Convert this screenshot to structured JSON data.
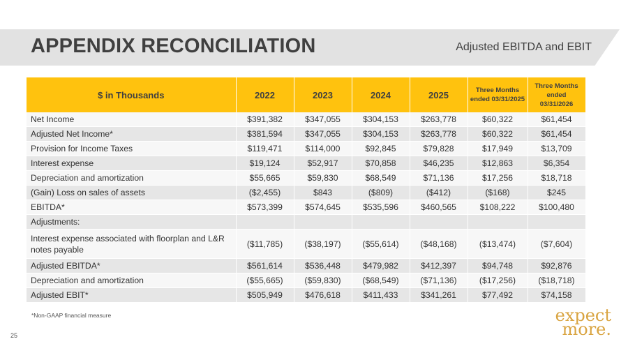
{
  "header": {
    "title": "APPENDIX RECONCILIATION",
    "subtitle": "Adjusted EBITDA and EBIT"
  },
  "table": {
    "columns": [
      "$ in Thousands",
      "2022",
      "2023",
      "2024",
      "2025",
      "Three Months ended 03/31/2025",
      "Three Months ended 03/31/2026"
    ],
    "rows": [
      {
        "label": "Net Income",
        "values": [
          "$391,382",
          "$347,055",
          "$304,153",
          "$263,778",
          "$60,322",
          "$61,454"
        ]
      },
      {
        "label": "Adjusted Net Income*",
        "values": [
          "$381,594",
          "$347,055",
          "$304,153",
          "$263,778",
          "$60,322",
          "$61,454"
        ]
      },
      {
        "label": "Provision for Income Taxes",
        "values": [
          "$119,471",
          "$114,000",
          "$92,845",
          "$79,828",
          "$17,949",
          "$13,709"
        ]
      },
      {
        "label": "Interest expense",
        "values": [
          "$19,124",
          "$52,917",
          "$70,858",
          "$46,235",
          "$12,863",
          "$6,354"
        ]
      },
      {
        "label": "Depreciation and amortization",
        "values": [
          "$55,665",
          "$59,830",
          "$68,549",
          "$71,136",
          "$17,256",
          "$18,718"
        ]
      },
      {
        "label": "(Gain) Loss on sales of assets",
        "values": [
          "($2,455)",
          "$843",
          "($809)",
          "($412)",
          "($168)",
          "$245"
        ]
      },
      {
        "label": "EBITDA*",
        "values": [
          "$573,399",
          "$574,645",
          "$535,596",
          "$460,565",
          "$108,222",
          "$100,480"
        ]
      },
      {
        "label": "Adjustments:",
        "values": [
          "",
          "",
          "",
          "",
          "",
          ""
        ]
      },
      {
        "label": "Interest expense associated with floorplan and L&R notes payable",
        "values": [
          "($11,785)",
          "($38,197)",
          "($55,614)",
          "($48,168)",
          "($13,474)",
          "($7,604)"
        ]
      },
      {
        "label": "Adjusted EBITDA*",
        "values": [
          "$561,614",
          "$536,448",
          "$479,982",
          "$412,397",
          "$94,748",
          "$92,876"
        ]
      },
      {
        "label": "Depreciation and amortization",
        "values": [
          "($55,665)",
          "($59,830)",
          "($68,549)",
          "($71,136)",
          "($17,256)",
          "($18,718)"
        ]
      },
      {
        "label": "Adjusted EBIT*",
        "values": [
          "$505,949",
          "$476,618",
          "$411,433",
          "$341,261",
          "$77,492",
          "$74,158"
        ]
      }
    ]
  },
  "footnote": "*Non-GAAP financial measure",
  "page_number": "25",
  "logo": {
    "line1": "expect",
    "line2": "more."
  },
  "colors": {
    "accent": "#ffc20e",
    "row_shade": "#e6e6e6",
    "logo": "#d9a441"
  }
}
